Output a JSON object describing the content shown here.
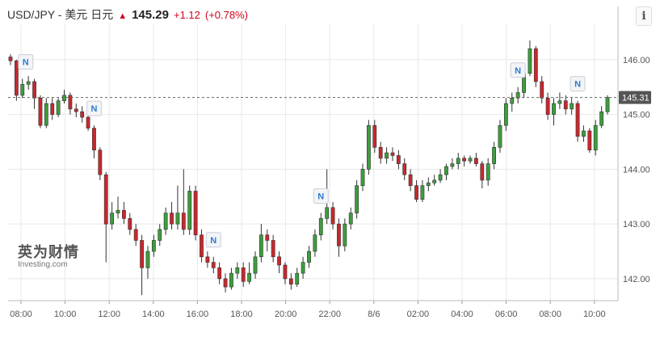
{
  "header": {
    "symbol": "USD/JPY - 美元 日元",
    "arrow": "▲",
    "price": "145.29",
    "change": "+1.12",
    "change_pct": "(+0.78%)"
  },
  "info_button": "i",
  "watermark": {
    "cn": "英为财情",
    "en": "Investing.com"
  },
  "colors": {
    "up": "#3c9e3c",
    "down": "#c8282d",
    "grid": "#e8e8e8",
    "current": "#666666"
  },
  "chart_data": {
    "type": "candlestick",
    "ylim": [
      141.6,
      146.5
    ],
    "y_ticks": [
      142.0,
      143.0,
      144.0,
      145.0,
      146.0
    ],
    "y_tick_labels": [
      "142.00",
      "143.00",
      "144.00",
      "145.00",
      "146.00"
    ],
    "x_tick_labels": [
      "08:00",
      "10:00",
      "12:00",
      "14:00",
      "16:00",
      "18:00",
      "20:00",
      "22:00",
      "8/6",
      "02:00",
      "04:00",
      "06:00",
      "08:00",
      "10:00"
    ],
    "current_price": 145.31,
    "current_price_label": "145.31",
    "news_marker_label": "N",
    "news_markers": [
      2,
      14,
      34,
      52,
      85,
      95
    ],
    "candles": [
      [
        146.05,
        145.98,
        146.1,
        145.9
      ],
      [
        145.98,
        145.35,
        146.0,
        145.25
      ],
      [
        145.35,
        145.55,
        145.65,
        145.3
      ],
      [
        145.55,
        145.6,
        145.7,
        145.45
      ],
      [
        145.6,
        145.3,
        145.65,
        145.1
      ],
      [
        145.3,
        144.8,
        145.35,
        144.75
      ],
      [
        144.8,
        145.2,
        145.3,
        144.75
      ],
      [
        145.2,
        145.0,
        145.3,
        144.9
      ],
      [
        145.0,
        145.25,
        145.3,
        144.95
      ],
      [
        145.25,
        145.35,
        145.45,
        145.2
      ],
      [
        145.35,
        145.1,
        145.4,
        145.0
      ],
      [
        145.1,
        145.05,
        145.2,
        144.95
      ],
      [
        145.05,
        144.95,
        145.15,
        144.85
      ],
      [
        144.95,
        144.75,
        145.0,
        144.7
      ],
      [
        144.75,
        144.35,
        144.8,
        144.2
      ],
      [
        144.35,
        143.9,
        144.4,
        143.8
      ],
      [
        143.9,
        143.0,
        143.95,
        142.3
      ],
      [
        143.0,
        143.2,
        143.4,
        142.9
      ],
      [
        143.2,
        143.25,
        143.5,
        143.1
      ],
      [
        143.25,
        143.1,
        143.4,
        143.0
      ],
      [
        143.1,
        142.9,
        143.2,
        142.8
      ],
      [
        142.9,
        142.7,
        143.0,
        142.6
      ],
      [
        142.7,
        142.2,
        142.8,
        141.7
      ],
      [
        142.2,
        142.5,
        142.6,
        142.0
      ],
      [
        142.5,
        142.7,
        142.8,
        142.4
      ],
      [
        142.7,
        142.9,
        143.0,
        142.6
      ],
      [
        142.9,
        143.2,
        143.3,
        142.8
      ],
      [
        143.2,
        143.0,
        143.4,
        142.9
      ],
      [
        143.0,
        143.2,
        143.7,
        142.9
      ],
      [
        143.2,
        142.9,
        144.0,
        142.8
      ],
      [
        142.9,
        143.6,
        143.7,
        142.8
      ],
      [
        143.6,
        142.8,
        143.7,
        142.7
      ],
      [
        142.8,
        142.4,
        142.9,
        142.3
      ],
      [
        142.4,
        142.3,
        142.5,
        142.2
      ],
      [
        142.3,
        142.2,
        142.4,
        142.1
      ],
      [
        142.2,
        142.0,
        142.3,
        141.9
      ],
      [
        142.0,
        141.85,
        142.1,
        141.75
      ],
      [
        141.85,
        142.1,
        142.2,
        141.8
      ],
      [
        142.1,
        142.2,
        142.3,
        142.0
      ],
      [
        142.2,
        141.95,
        142.3,
        141.85
      ],
      [
        141.95,
        142.1,
        142.3,
        141.9
      ],
      [
        142.1,
        142.4,
        142.5,
        142.0
      ],
      [
        142.4,
        142.8,
        143.0,
        142.3
      ],
      [
        142.8,
        142.7,
        142.9,
        142.5
      ],
      [
        142.7,
        142.4,
        142.8,
        142.3
      ],
      [
        142.4,
        142.25,
        142.5,
        142.1
      ],
      [
        142.25,
        142.0,
        142.3,
        141.9
      ],
      [
        142.0,
        141.9,
        142.1,
        141.8
      ],
      [
        141.9,
        142.1,
        142.2,
        141.85
      ],
      [
        142.1,
        142.3,
        142.4,
        142.0
      ],
      [
        142.3,
        142.5,
        142.6,
        142.2
      ],
      [
        142.5,
        142.8,
        142.9,
        142.4
      ],
      [
        142.8,
        143.1,
        143.2,
        142.7
      ],
      [
        143.1,
        143.3,
        144.0,
        143.0
      ],
      [
        143.3,
        143.0,
        143.4,
        142.9
      ],
      [
        143.0,
        142.6,
        143.1,
        142.4
      ],
      [
        142.6,
        143.0,
        143.1,
        142.5
      ],
      [
        143.0,
        143.2,
        143.3,
        142.9
      ],
      [
        143.2,
        143.7,
        143.8,
        143.1
      ],
      [
        143.7,
        144.0,
        144.1,
        143.6
      ],
      [
        144.0,
        144.8,
        144.9,
        143.9
      ],
      [
        144.8,
        144.4,
        144.9,
        144.3
      ],
      [
        144.4,
        144.2,
        144.5,
        144.1
      ],
      [
        144.2,
        144.3,
        144.4,
        144.1
      ],
      [
        144.3,
        144.25,
        144.4,
        144.15
      ],
      [
        144.25,
        144.1,
        144.35,
        144.0
      ],
      [
        144.1,
        143.9,
        144.2,
        143.8
      ],
      [
        143.9,
        143.7,
        144.0,
        143.6
      ],
      [
        143.7,
        143.45,
        143.8,
        143.4
      ],
      [
        143.45,
        143.7,
        143.8,
        143.4
      ],
      [
        143.7,
        143.75,
        143.85,
        143.6
      ],
      [
        143.75,
        143.8,
        143.9,
        143.7
      ],
      [
        143.8,
        143.9,
        144.0,
        143.75
      ],
      [
        143.9,
        144.05,
        144.1,
        143.8
      ],
      [
        144.05,
        144.1,
        144.2,
        144.0
      ],
      [
        144.1,
        144.2,
        144.3,
        144.0
      ],
      [
        144.2,
        144.15,
        144.25,
        144.05
      ],
      [
        144.15,
        144.2,
        144.25,
        144.1
      ],
      [
        144.2,
        144.1,
        144.3,
        144.05
      ],
      [
        144.1,
        143.8,
        144.15,
        143.65
      ],
      [
        143.8,
        144.1,
        144.2,
        143.7
      ],
      [
        144.1,
        144.4,
        144.5,
        144.0
      ],
      [
        144.4,
        144.8,
        144.9,
        144.3
      ],
      [
        144.8,
        145.2,
        145.3,
        144.7
      ],
      [
        145.2,
        145.3,
        145.4,
        145.05
      ],
      [
        145.3,
        145.4,
        145.5,
        145.2
      ],
      [
        145.4,
        145.75,
        145.8,
        145.3
      ],
      [
        145.75,
        146.2,
        146.35,
        145.7
      ],
      [
        146.2,
        145.6,
        146.25,
        145.5
      ],
      [
        145.6,
        145.3,
        145.7,
        145.2
      ],
      [
        145.3,
        145.0,
        145.4,
        144.9
      ],
      [
        145.0,
        145.2,
        145.3,
        144.8
      ],
      [
        145.2,
        145.25,
        145.4,
        145.1
      ],
      [
        145.25,
        145.1,
        145.35,
        145.0
      ],
      [
        145.1,
        145.2,
        145.3,
        145.0
      ],
      [
        145.2,
        144.6,
        145.25,
        144.5
      ],
      [
        144.6,
        144.7,
        144.8,
        144.5
      ],
      [
        144.7,
        144.35,
        144.75,
        144.3
      ],
      [
        144.35,
        144.8,
        144.9,
        144.25
      ],
      [
        144.8,
        145.05,
        145.15,
        144.75
      ],
      [
        145.05,
        145.31,
        145.35,
        145.0
      ]
    ]
  }
}
